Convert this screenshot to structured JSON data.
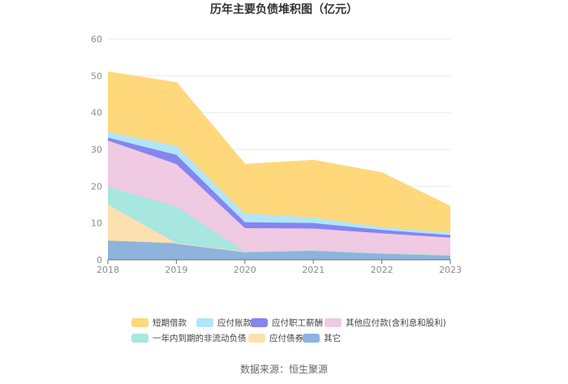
{
  "chart_data": {
    "type": "area",
    "stacked": true,
    "title": "历年主要负债堆积图（亿元）",
    "x": [
      "2018",
      "2019",
      "2020",
      "2021",
      "2022",
      "2023"
    ],
    "ylim": [
      0,
      60
    ],
    "yticks": [
      0,
      10,
      20,
      30,
      40,
      50,
      60
    ],
    "grid": true,
    "legend_position": "bottom",
    "series": [
      {
        "name": "其它",
        "color": "#8eb3dd",
        "values": [
          5.2,
          4.5,
          2.2,
          2.6,
          1.8,
          1.3
        ]
      },
      {
        "name": "应付债券",
        "color": "#fde0b0",
        "values": [
          9.8,
          0.0,
          0.0,
          0.0,
          0.0,
          0.0
        ]
      },
      {
        "name": "一年内到期的非流动负债",
        "color": "#a8e6e0",
        "values": [
          4.8,
          10.0,
          0.0,
          0.0,
          0.0,
          0.0
        ]
      },
      {
        "name": "其他应付款(含利息和股利)",
        "color": "#f0c9e2",
        "values": [
          12.6,
          11.5,
          6.4,
          5.9,
          5.4,
          4.7
        ]
      },
      {
        "name": "应付职工薪酬",
        "color": "#8585f0",
        "values": [
          0.8,
          2.5,
          1.6,
          1.5,
          0.9,
          0.7
        ]
      },
      {
        "name": "应付账款",
        "color": "#b2e5f9",
        "values": [
          1.6,
          2.4,
          2.4,
          1.5,
          0.8,
          0.7
        ]
      },
      {
        "name": "短期借款",
        "color": "#fed87a",
        "values": [
          16.2,
          17.2,
          13.3,
          15.5,
          14.7,
          7.1
        ]
      }
    ],
    "legend_order": [
      "短期借款",
      "应付账款",
      "应付职工薪酬",
      "其他应付款(含利息和股利)",
      "一年内到期的非流动负债",
      "应付债券",
      "其它"
    ],
    "source": "数据来源：恒生聚源"
  }
}
